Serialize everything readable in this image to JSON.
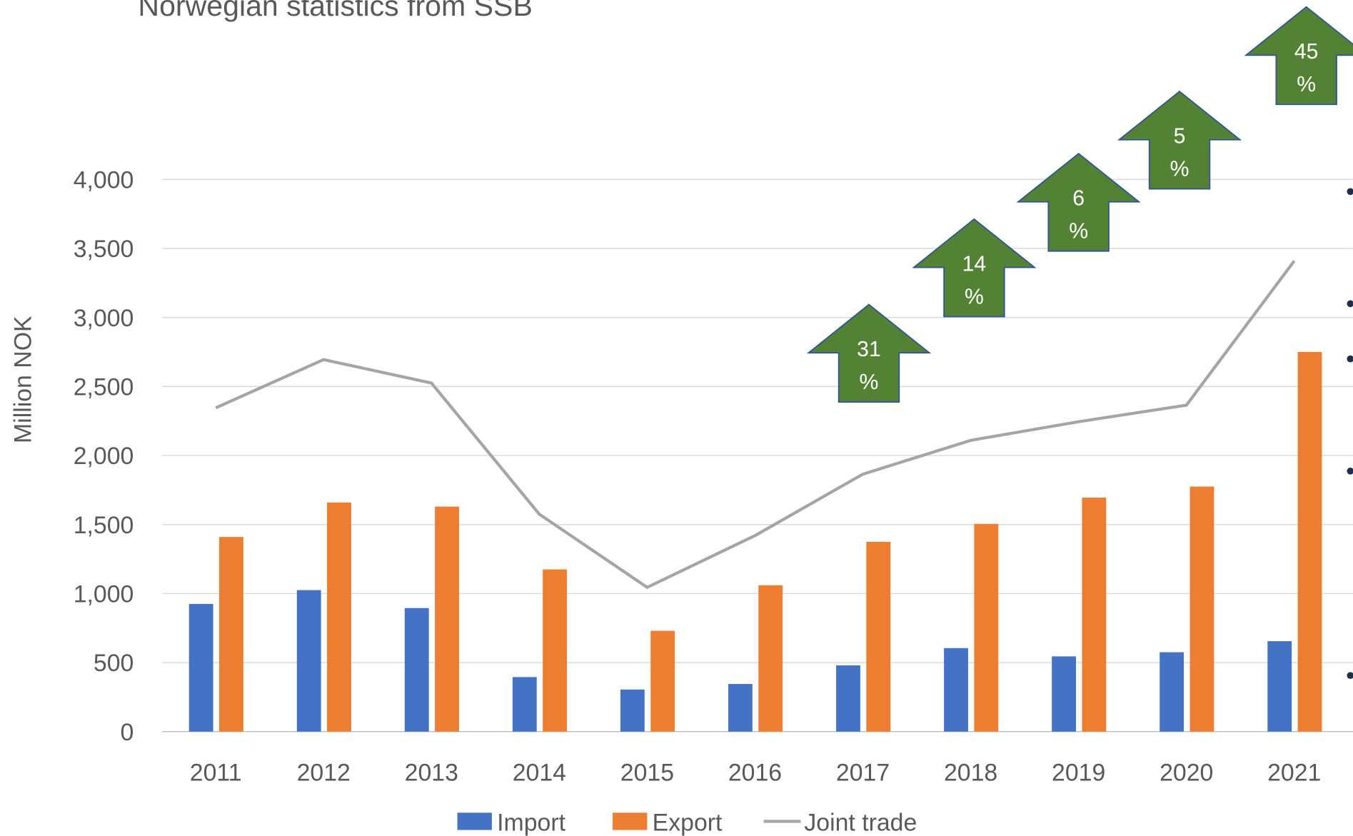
{
  "chart_data": {
    "type": "bar",
    "title": "Norwegian statistics from SSB",
    "y_label": "Million NOK",
    "categories": [
      "2011",
      "2012",
      "2013",
      "2014",
      "2015",
      "2016",
      "2017",
      "2018",
      "2019",
      "2020",
      "2021"
    ],
    "series": [
      {
        "name": "Import",
        "color": "#4472c4",
        "type": "bar",
        "values": [
          925,
          1025,
          895,
          395,
          305,
          345,
          480,
          605,
          545,
          575,
          655
        ]
      },
      {
        "name": "Export",
        "color": "#ed7d31",
        "type": "bar",
        "values": [
          1410,
          1660,
          1630,
          1175,
          730,
          1060,
          1375,
          1505,
          1695,
          1775,
          2750
        ]
      },
      {
        "name": "Joint trade",
        "color": "#a5a5a5",
        "type": "line",
        "values": [
          2345,
          2695,
          2525,
          1575,
          1045,
          1420,
          1865,
          2110,
          2245,
          2365,
          3410
        ]
      }
    ],
    "annotations": [
      "31 %",
      "14 %",
      "6 %",
      "5 %",
      "45 %"
    ],
    "annotation_color": "#548235",
    "ylim": [
      0,
      4000
    ],
    "yticks": [
      0,
      {
        "value": 500,
        "label": "500"
      },
      {
        "value": 1000,
        "label": "1,000"
      },
      {
        "value": 1500,
        "label": "1,500"
      },
      {
        "value": 2000,
        "label": "2,000"
      },
      {
        "value": 2500,
        "label": "2,500"
      },
      {
        "value": 3000,
        "label": "3,000"
      },
      {
        "value": 3500,
        "label": "3,500"
      },
      {
        "value": 4000,
        "label": "4,000"
      }
    ],
    "grid": true,
    "legend": "bottom"
  }
}
